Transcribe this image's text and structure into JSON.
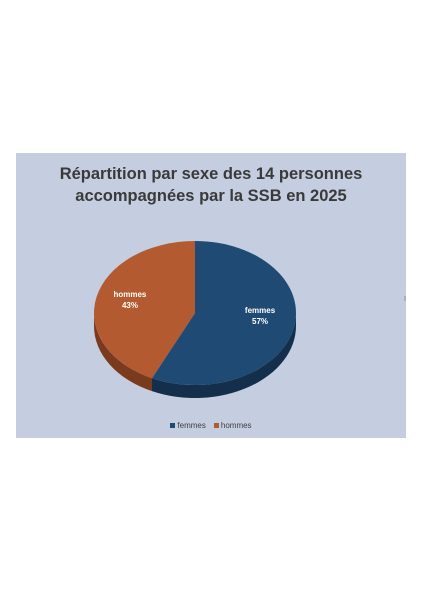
{
  "chart_data": {
    "type": "pie",
    "title_lines": [
      "Répartition par sexe des 14 personnes",
      "accompagnées par la SSB en 2025"
    ],
    "categories": [
      "femmes",
      "hommes"
    ],
    "values": [
      57,
      43
    ],
    "data_labels": [
      {
        "name": "femmes",
        "value": "57%"
      },
      {
        "name": "hommes",
        "value": "43%"
      }
    ],
    "colors": {
      "femmes": "#1f4a73",
      "femmes_side": "#142f4b",
      "hommes": "#b45a30",
      "hommes_side": "#7a3a1e",
      "background": "#c5cde0"
    },
    "legend": {
      "placement": "bottom",
      "entries": [
        "femmes",
        "hommes"
      ]
    }
  }
}
